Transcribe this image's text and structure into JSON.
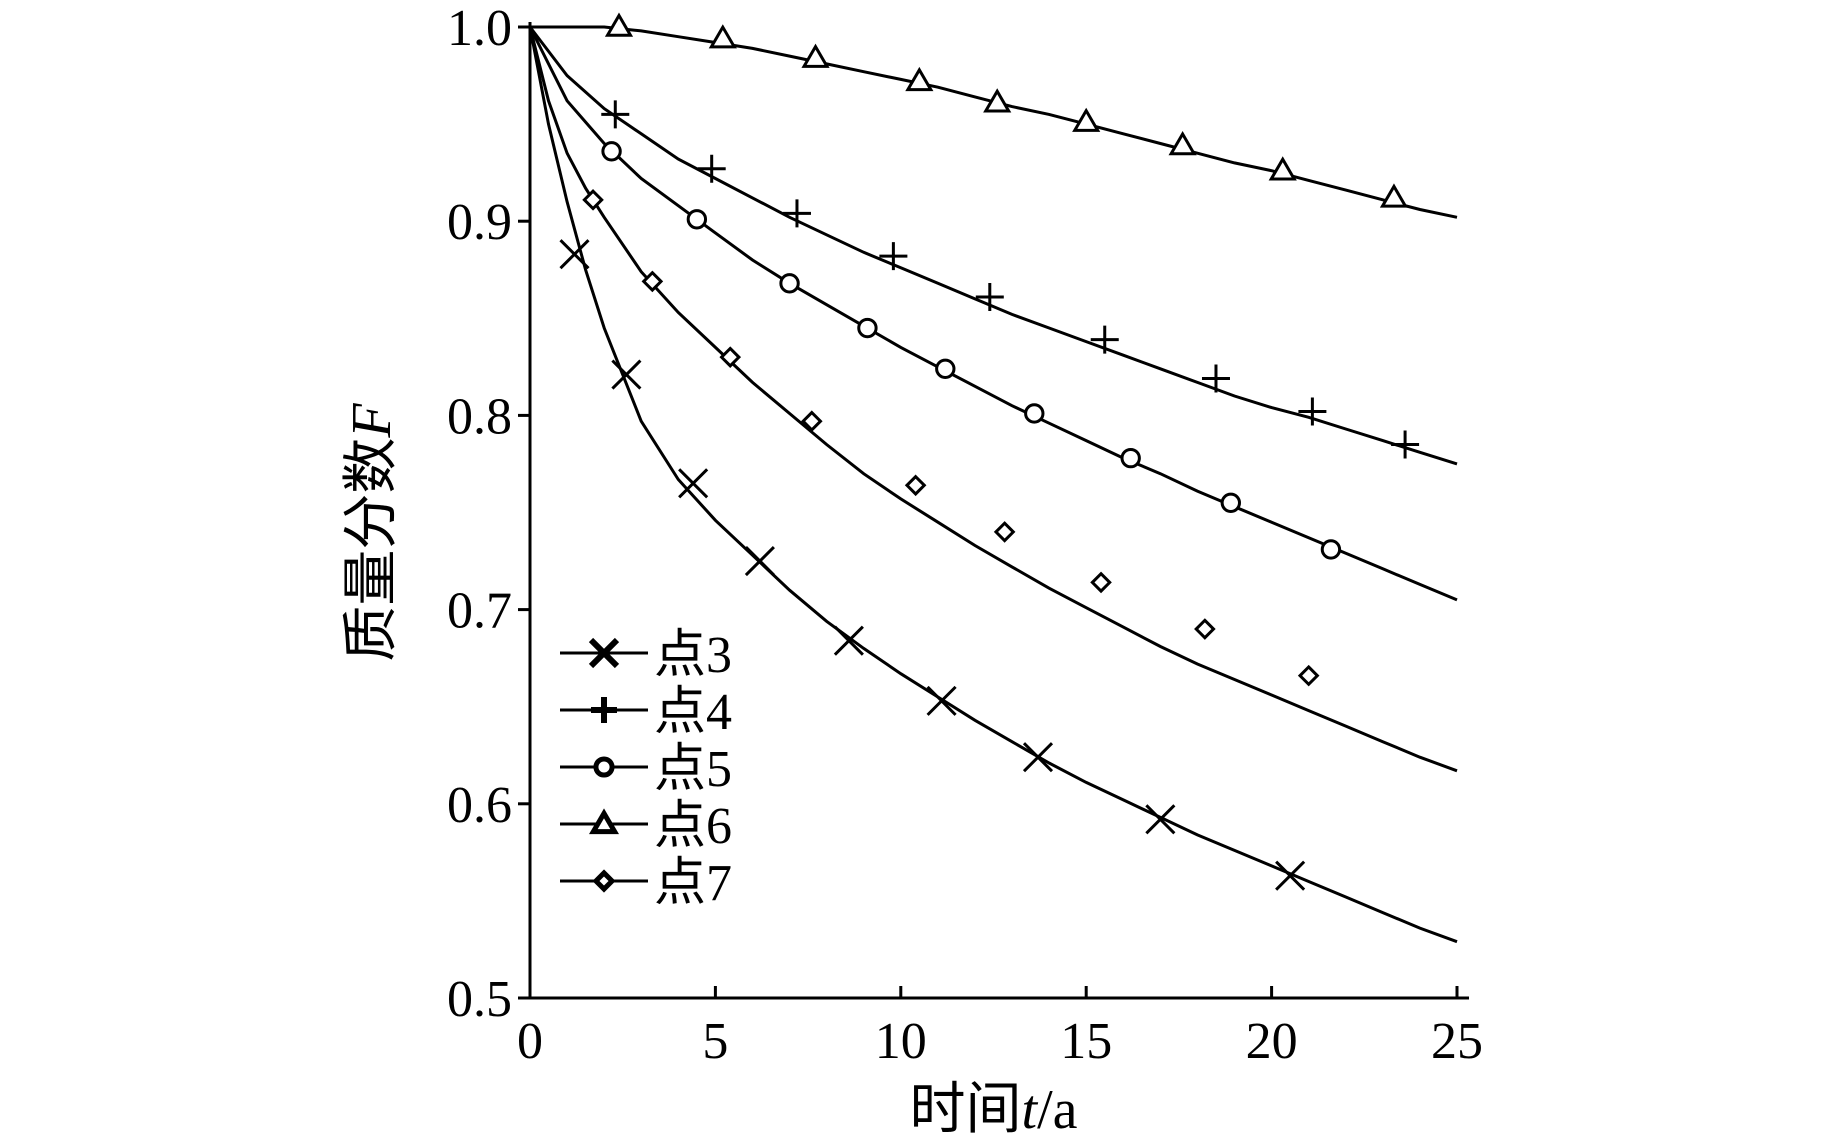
{
  "chart_data": {
    "type": "line",
    "title": "",
    "xlabel": {
      "prefix": "时间",
      "var": "t",
      "suffix": "/a"
    },
    "ylabel": {
      "prefix": "质量分数",
      "var": "F"
    },
    "xlim": [
      0,
      25
    ],
    "ylim": [
      0.5,
      1.0
    ],
    "x_ticks": [
      0,
      5,
      10,
      15,
      20,
      25
    ],
    "x_tick_labels": [
      "0",
      "5",
      "10",
      "15",
      "20",
      "25"
    ],
    "y_ticks": [
      0.5,
      0.6,
      0.7,
      0.8,
      0.9,
      1.0
    ],
    "y_tick_labels": [
      "0.5",
      "0.6",
      "0.7",
      "0.8",
      "0.9",
      "1.0"
    ],
    "grid": false,
    "legend": "bottom-left",
    "series": [
      {
        "name": "点3",
        "marker": "x",
        "line_x": [
          0,
          0.5,
          1,
          1.5,
          2,
          3,
          4,
          5,
          6,
          7,
          8,
          9,
          10,
          11,
          12,
          13,
          14,
          15,
          16,
          17,
          18,
          19,
          20,
          21,
          22,
          23,
          24,
          25
        ],
        "line_y": [
          1.0,
          0.95,
          0.91,
          0.875,
          0.845,
          0.797,
          0.767,
          0.746,
          0.728,
          0.71,
          0.694,
          0.68,
          0.667,
          0.655,
          0.643,
          0.632,
          0.621,
          0.611,
          0.602,
          0.593,
          0.584,
          0.576,
          0.568,
          0.56,
          0.552,
          0.544,
          0.536,
          0.529
        ],
        "marker_x": [
          1.2,
          2.6,
          4.4,
          6.2,
          8.6,
          11.1,
          13.7,
          17.0,
          20.5
        ],
        "marker_y": [
          0.883,
          0.821,
          0.765,
          0.725,
          0.684,
          0.653,
          0.624,
          0.592,
          0.563
        ]
      },
      {
        "name": "点4",
        "marker": "+",
        "line_x": [
          0,
          1,
          2,
          3,
          4,
          5,
          6,
          7,
          8,
          9,
          10,
          11,
          12,
          13,
          14,
          15,
          16,
          17,
          18,
          19,
          20,
          21,
          22,
          23,
          24,
          25
        ],
        "line_y": [
          1.0,
          0.975,
          0.958,
          0.945,
          0.932,
          0.922,
          0.912,
          0.902,
          0.893,
          0.884,
          0.876,
          0.868,
          0.86,
          0.852,
          0.845,
          0.838,
          0.831,
          0.824,
          0.817,
          0.81,
          0.804,
          0.799,
          0.793,
          0.787,
          0.781,
          0.775
        ],
        "marker_x": [
          2.3,
          4.9,
          7.2,
          9.8,
          12.4,
          15.5,
          18.5,
          21.1,
          23.6
        ],
        "marker_y": [
          0.955,
          0.927,
          0.904,
          0.882,
          0.861,
          0.839,
          0.819,
          0.802,
          0.785
        ]
      },
      {
        "name": "点5",
        "marker": "o",
        "line_x": [
          0,
          1,
          2,
          3,
          4,
          5,
          6,
          7,
          8,
          9,
          10,
          11,
          12,
          13,
          14,
          15,
          16,
          17,
          18,
          19,
          20,
          21,
          22,
          23,
          24,
          25
        ],
        "line_y": [
          1.0,
          0.962,
          0.94,
          0.922,
          0.908,
          0.894,
          0.88,
          0.868,
          0.857,
          0.846,
          0.835,
          0.825,
          0.815,
          0.805,
          0.796,
          0.787,
          0.778,
          0.77,
          0.761,
          0.753,
          0.745,
          0.737,
          0.729,
          0.721,
          0.713,
          0.705
        ],
        "marker_x": [
          2.2,
          4.5,
          7.0,
          9.1,
          11.2,
          13.6,
          16.2,
          18.9,
          21.6
        ],
        "marker_y": [
          0.936,
          0.901,
          0.868,
          0.845,
          0.824,
          0.801,
          0.778,
          0.755,
          0.731
        ]
      },
      {
        "name": "点6",
        "marker": "triangle",
        "line_x": [
          0,
          1,
          2,
          3,
          4,
          5,
          6,
          7,
          8,
          9,
          10,
          11,
          12,
          13,
          14,
          15,
          16,
          17,
          18,
          19,
          20,
          21,
          22,
          23,
          24,
          25
        ],
        "line_y": [
          1.0,
          1.0,
          1.0,
          0.998,
          0.995,
          0.992,
          0.989,
          0.985,
          0.981,
          0.977,
          0.973,
          0.969,
          0.964,
          0.959,
          0.955,
          0.95,
          0.945,
          0.94,
          0.935,
          0.93,
          0.926,
          0.921,
          0.916,
          0.911,
          0.906,
          0.902
        ],
        "marker_x": [
          2.4,
          5.2,
          7.7,
          10.5,
          12.6,
          15.0,
          17.6,
          20.3,
          23.3
        ],
        "marker_y": [
          1.0,
          0.994,
          0.984,
          0.972,
          0.961,
          0.951,
          0.939,
          0.926,
          0.912
        ]
      },
      {
        "name": "点7",
        "marker": "diamond",
        "line_x": [
          0,
          0.5,
          1,
          1.5,
          2,
          3,
          4,
          5,
          6,
          7,
          8,
          9,
          10,
          11,
          12,
          13,
          14,
          15,
          16,
          17,
          18,
          19,
          20,
          21,
          22,
          23,
          24,
          25
        ],
        "line_y": [
          1.0,
          0.962,
          0.935,
          0.917,
          0.902,
          0.874,
          0.853,
          0.835,
          0.817,
          0.801,
          0.785,
          0.77,
          0.757,
          0.745,
          0.733,
          0.722,
          0.711,
          0.701,
          0.691,
          0.681,
          0.672,
          0.664,
          0.656,
          0.648,
          0.64,
          0.632,
          0.624,
          0.617
        ],
        "marker_x": [
          1.7,
          3.3,
          5.4,
          7.6,
          10.4,
          12.8,
          15.4,
          18.2,
          21.0
        ],
        "marker_y": [
          0.911,
          0.869,
          0.83,
          0.797,
          0.764,
          0.74,
          0.714,
          0.69,
          0.666
        ]
      }
    ]
  }
}
